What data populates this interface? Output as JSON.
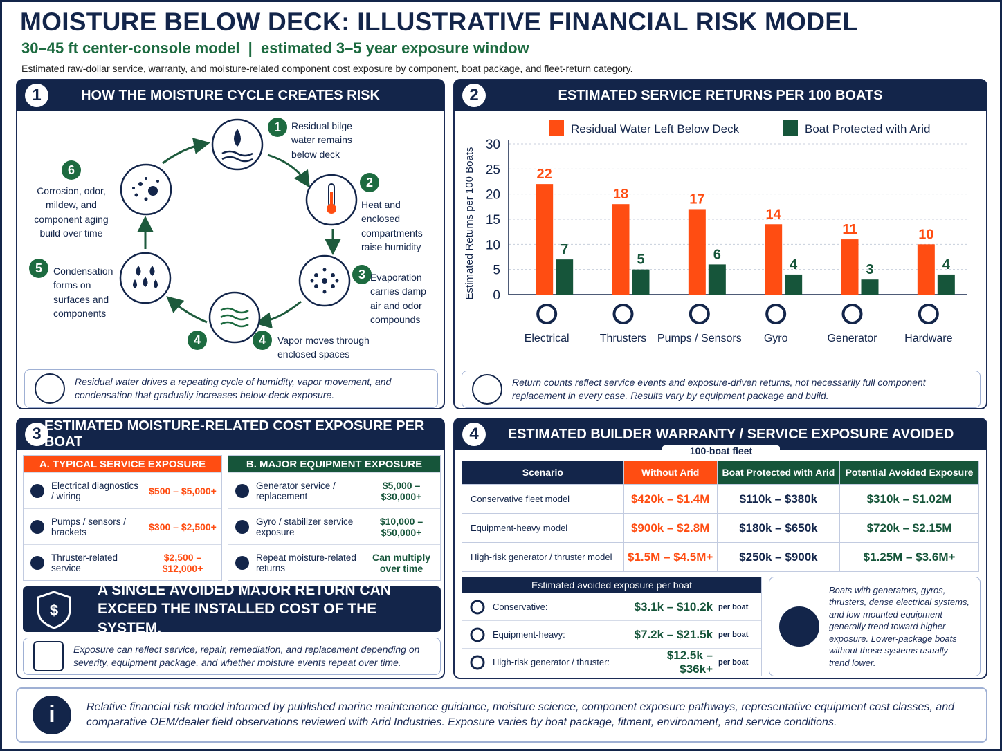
{
  "header": {
    "title": "MOISTURE BELOW DECK: ILLUSTRATIVE FINANCIAL RISK MODEL",
    "subtitle": "30–45 ft center-console model  |  estimated 3–5 year exposure window",
    "description": "Estimated raw-dollar service, warranty, and moisture-related component cost exposure by component, boat package, and fleet-return category."
  },
  "panel1": {
    "number": "1",
    "title": "HOW THE MOISTURE CYCLE CREATES RISK",
    "steps": [
      {
        "number": "1",
        "text": "Residual bilge water remains below deck"
      },
      {
        "number": "2",
        "text": "Heat and enclosed compartments raise humidity"
      },
      {
        "number": "3",
        "text": "Evaporation carries damp air and odor compounds"
      },
      {
        "number": "4",
        "text": "Vapor moves through enclosed spaces"
      },
      {
        "number": "5",
        "text": "Condensation forms on surfaces and components"
      },
      {
        "number": "6",
        "text": "Corrosion, odor, mildew, and component aging build over time"
      }
    ],
    "note": "Residual water drives a repeating cycle of humidity, vapor movement, and condensation that gradually increases below-deck exposure."
  },
  "chart_data": {
    "type": "bar",
    "number": "2",
    "title": "ESTIMATED SERVICE RETURNS PER 100 BOATS",
    "y_label": "Estimated Returns per 100 Boats",
    "categories": [
      "Electrical",
      "Thrusters",
      "Pumps / Sensors",
      "Gyro",
      "Generator",
      "Hardware"
    ],
    "series": [
      {
        "name": "Residual Water Left Below Deck",
        "color": "#ff4d12",
        "values": [
          22,
          18,
          17,
          14,
          11,
          10
        ]
      },
      {
        "name": "Boat Protected with Arid",
        "color": "#16553a",
        "values": [
          7,
          5,
          6,
          4,
          3,
          4
        ]
      }
    ],
    "ylim": [
      0,
      30
    ],
    "yticks": [
      0,
      5,
      10,
      15,
      20,
      25,
      30
    ],
    "grid": true,
    "note": "Return counts reflect service events and exposure-driven returns, not necessarily full component replacement in every case. Results vary by equipment package and build."
  },
  "panel3": {
    "number": "3",
    "title": "ESTIMATED MOISTURE-RELATED COST EXPOSURE PER BOAT",
    "typical": {
      "heading": "A. TYPICAL SERVICE EXPOSURE",
      "rows": [
        {
          "item": "Electrical diagnostics / wiring",
          "cost": "$500 – $5,000+"
        },
        {
          "item": "Pumps / sensors / brackets",
          "cost": "$300 – $2,500+"
        },
        {
          "item": "Thruster-related service",
          "cost": "$2,500 – $12,000+"
        }
      ]
    },
    "major": {
      "heading": "B. MAJOR EQUIPMENT EXPOSURE",
      "rows": [
        {
          "item": "Generator service / replacement",
          "cost": "$5,000 – $30,000+"
        },
        {
          "item": "Gyro / stabilizer service exposure",
          "cost": "$10,000 – $50,000+"
        },
        {
          "item": "Repeat moisture-related returns",
          "cost": "Can multiply over time"
        }
      ]
    },
    "callout": "A SINGLE AVOIDED MAJOR RETURN CAN EXCEED THE INSTALLED COST OF THE SYSTEM.",
    "note": "Exposure can reflect service, repair, remediation, and replacement depending on severity, equipment package, and whether moisture events repeat over time."
  },
  "panel4": {
    "number": "4",
    "title": "ESTIMATED BUILDER WARRANTY / SERVICE EXPOSURE AVOIDED",
    "subtitle": "100-boat fleet",
    "table": {
      "columns": [
        "Scenario",
        "Without Arid",
        "Boat Protected with Arid",
        "Potential Avoided Exposure"
      ],
      "rows": [
        [
          "Conservative fleet model",
          "$420k – $1.4M",
          "$110k – $380k",
          "$310k – $1.02M"
        ],
        [
          "Equipment-heavy model",
          "$900k – $2.8M",
          "$180k – $650k",
          "$720k – $2.15M"
        ],
        [
          "High-risk generator / thruster model",
          "$1.5M – $4.5M+",
          "$250k – $900k",
          "$1.25M – $3.6M+"
        ]
      ]
    },
    "per_boat": {
      "heading": "Estimated avoided exposure per boat",
      "unit": "per boat",
      "rows": [
        {
          "label": "Conservative:",
          "value": "$3.1k – $10.2k"
        },
        {
          "label": "Equipment-heavy:",
          "value": "$7.2k – $21.5k"
        },
        {
          "label": "High-risk generator / thruster:",
          "value": "$12.5k – $36k+"
        }
      ]
    },
    "note": "Boats with generators, gyros, thrusters, dense electrical systems, and low-mounted equipment generally trend toward higher exposure. Lower-package boats without those systems usually trend lower."
  },
  "footer": {
    "text": "Relative financial risk model informed by published marine maintenance guidance, moisture science, component exposure pathways, representative equipment cost classes, and comparative OEM/dealer field observations reviewed with Arid Industries. Exposure varies by boat package, fitment, environment, and service conditions."
  }
}
